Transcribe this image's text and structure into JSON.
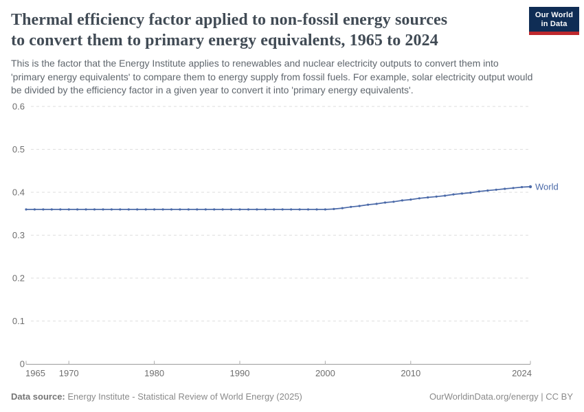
{
  "header": {
    "title_lines": [
      "Thermal efficiency factor applied to non-fossil energy sources",
      "to convert them to primary energy equivalents, 1965 to 2024"
    ],
    "subtitle_lines": [
      "This is the factor that the Energy Institute applies to renewables and nuclear electricity outputs to convert them into",
      "'primary energy equivalents' to compare them to energy supply from fossil fuels. For example, solar electricity output would",
      "be divided by the efficiency factor in a given year to convert it into 'primary energy equivalents'."
    ]
  },
  "logo": {
    "line1": "Our World",
    "line2": "in Data",
    "bg_color": "#0f2d55",
    "accent_color": "#be282d"
  },
  "footer": {
    "datasource_label": "Data source:",
    "datasource_text": " Energy Institute - Statistical Review of World Energy (2025)",
    "attribution": "OurWorldinData.org/energy | CC BY"
  },
  "chart_data": {
    "type": "line",
    "title": "Thermal efficiency factor applied to non-fossil energy sources to convert them to primary energy equivalents, 1965 to 2024",
    "xlabel": "",
    "ylabel": "",
    "xlim": [
      1965,
      2024
    ],
    "ylim": [
      0,
      0.6
    ],
    "yticks": [
      0,
      0.1,
      0.2,
      0.3,
      0.4,
      0.5,
      0.6
    ],
    "ytick_labels": [
      "0",
      "0.1",
      "0.2",
      "0.3",
      "0.4",
      "0.5",
      "0.6"
    ],
    "xticks": [
      1965,
      1970,
      1980,
      1990,
      2000,
      2010,
      2024
    ],
    "xtick_labels": [
      "1965",
      "1970",
      "1980",
      "1990",
      "2000",
      "2010",
      "2024"
    ],
    "grid": "horizontal-dashed",
    "legend_position": "end-of-line-label",
    "x": [
      1965,
      1966,
      1967,
      1968,
      1969,
      1970,
      1971,
      1972,
      1973,
      1974,
      1975,
      1976,
      1977,
      1978,
      1979,
      1980,
      1981,
      1982,
      1983,
      1984,
      1985,
      1986,
      1987,
      1988,
      1989,
      1990,
      1991,
      1992,
      1993,
      1994,
      1995,
      1996,
      1997,
      1998,
      1999,
      2000,
      2001,
      2002,
      2003,
      2004,
      2005,
      2006,
      2007,
      2008,
      2009,
      2010,
      2011,
      2012,
      2013,
      2014,
      2015,
      2016,
      2017,
      2018,
      2019,
      2020,
      2021,
      2022,
      2023,
      2024
    ],
    "series": [
      {
        "name": "World",
        "color": "#4a69a8",
        "values": [
          0.36,
          0.36,
          0.36,
          0.36,
          0.36,
          0.36,
          0.36,
          0.36,
          0.36,
          0.36,
          0.36,
          0.36,
          0.36,
          0.36,
          0.36,
          0.36,
          0.36,
          0.36,
          0.36,
          0.36,
          0.36,
          0.36,
          0.36,
          0.36,
          0.36,
          0.36,
          0.36,
          0.36,
          0.36,
          0.36,
          0.36,
          0.36,
          0.36,
          0.36,
          0.36,
          0.36,
          0.361,
          0.363,
          0.366,
          0.368,
          0.371,
          0.373,
          0.376,
          0.378,
          0.381,
          0.383,
          0.386,
          0.388,
          0.39,
          0.392,
          0.395,
          0.397,
          0.399,
          0.402,
          0.404,
          0.406,
          0.408,
          0.41,
          0.412,
          0.413
        ]
      }
    ],
    "colors": {
      "gridline": "#dedede",
      "axis": "#9a9a9a",
      "tick": "#ababab",
      "tick_label": "#6e6e6e"
    }
  }
}
